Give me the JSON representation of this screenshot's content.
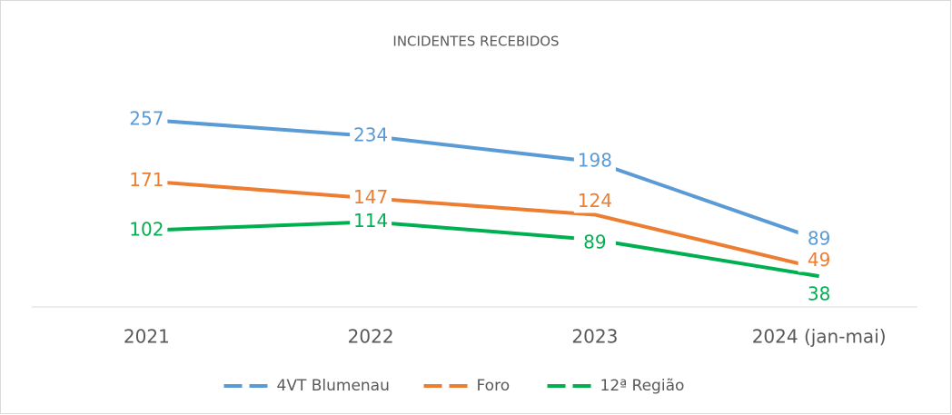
{
  "chart_data": {
    "type": "line",
    "title": "INCIDENTES RECEBIDOS",
    "categories": [
      "2021",
      "2022",
      "2023",
      "2024 (jan-mai)"
    ],
    "series": [
      {
        "name": "4VT Blumenau",
        "color": "#5b9bd5",
        "values": [
          257,
          234,
          198,
          89
        ]
      },
      {
        "name": "Foro",
        "color": "#ed7d31",
        "values": [
          171,
          147,
          124,
          49
        ]
      },
      {
        "name": "12ª Região",
        "color": "#00b050",
        "values": [
          102,
          114,
          89,
          38
        ]
      }
    ],
    "ylim": [
      0,
      300
    ],
    "legend": "bottom",
    "grid": false
  }
}
